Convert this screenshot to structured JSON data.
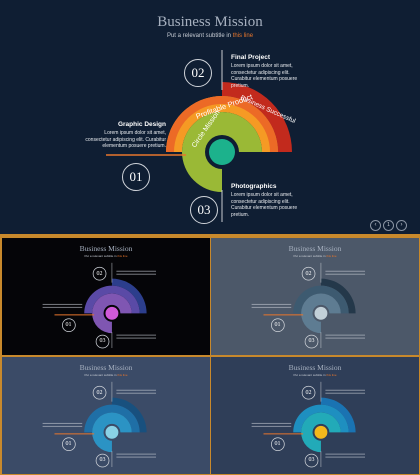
{
  "slide": {
    "title": "Business Mission",
    "subtitle_prefix": "Put a relevant subtitle in ",
    "subtitle_highlight": "this line",
    "labels": {
      "final_project": {
        "number": "02",
        "title": "Final Project",
        "text": "Lorem ipsum dolor sit amet, consectetur adipiscing elit. Curabitur elementum posuere pretium."
      },
      "graphic_design": {
        "number": "01",
        "title": "Graphic Design",
        "text": "Lorem ipsum dolor sit amet, consectetur adipiscing elit. Curabitur elementum posuere pretium."
      },
      "photographics": {
        "number": "03",
        "title": "Photographics",
        "text": "Lorem ipsum dolor sit amet, consectetur adipiscing elit. Curabitur elementum posuere pretium."
      }
    },
    "arcs": [
      "Business Successful",
      "Profitable Product",
      "Circle Mission"
    ],
    "nav": [
      "‹",
      "1",
      "›"
    ]
  },
  "themes": [
    {
      "bg": "#0f1e33",
      "colors": [
        "#c22a1d",
        "#ec6a26",
        "#f59a24",
        "#9ab936",
        "#1cb28c"
      ]
    },
    {
      "bg": "#050508",
      "colors": [
        "#2c3e8c",
        "#5a4aa6",
        "#7f56b2",
        "#a64eb8",
        "#d05ad8"
      ]
    },
    {
      "bg": "#4c5869",
      "colors": [
        "#24384a",
        "#3d5a70",
        "#5e7c92",
        "#8aa4b2",
        "#c2d0d8"
      ]
    },
    {
      "bg": "#3b4b67",
      "colors": [
        "#18507e",
        "#1f6fa6",
        "#2b93c4",
        "#45b3d6",
        "#8ad2e6"
      ]
    },
    {
      "bg": "#2f3e58",
      "colors": [
        "#1a73b2",
        "#1e8fc0",
        "#22aab8",
        "#2fbf86",
        "#f4b81c"
      ]
    }
  ]
}
